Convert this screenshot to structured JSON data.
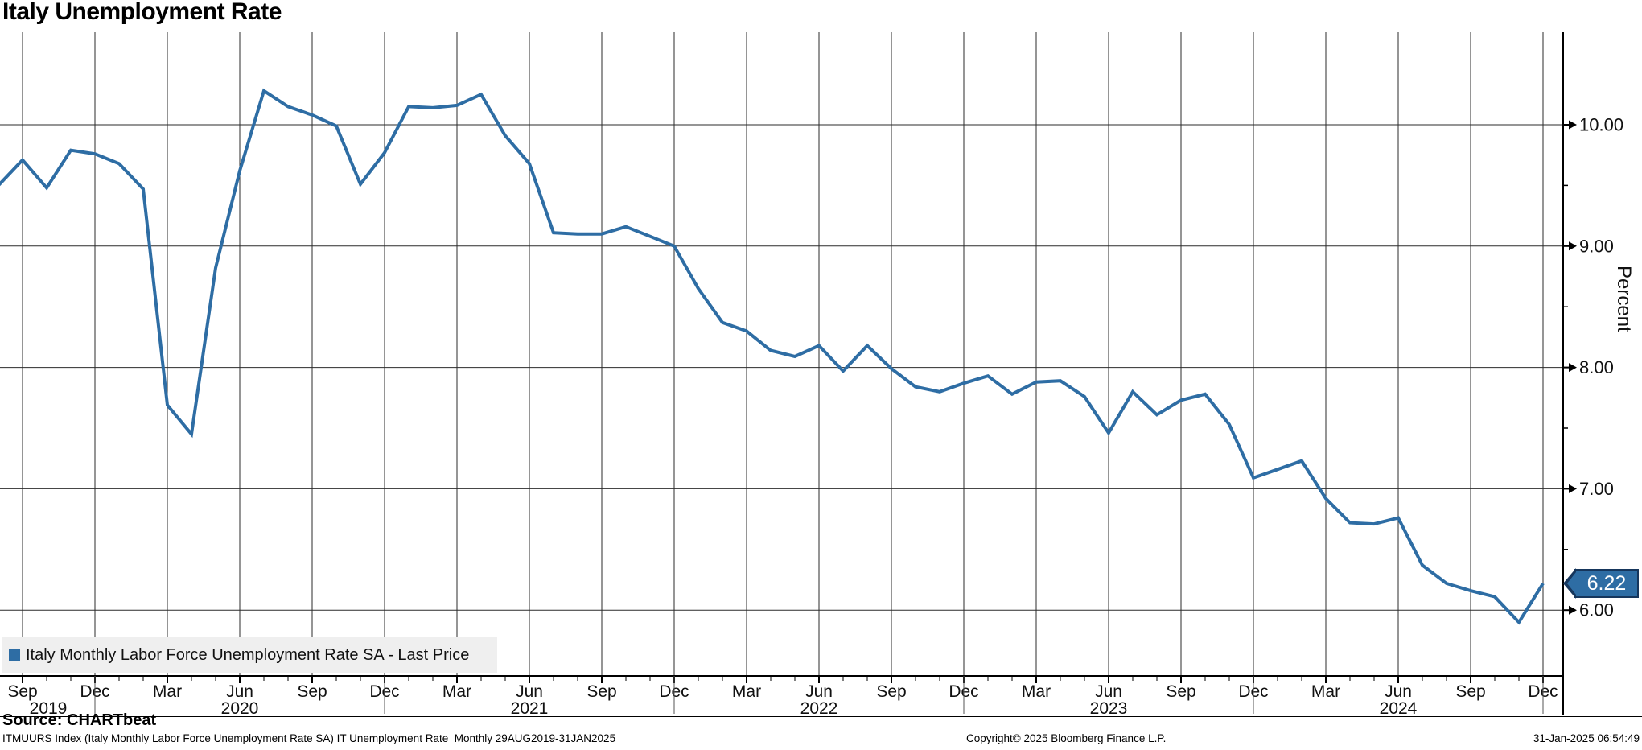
{
  "title": "Italy Unemployment Rate",
  "legend": {
    "label": "Italy Monthly Labor Force Unemployment Rate SA - Last Price",
    "marker_color": "#2e6da4"
  },
  "last_price_badge": {
    "value": "6.22",
    "fill": "#2e6da4",
    "border": "#16365c"
  },
  "y_axis": {
    "label": "Percent",
    "major_labels": [
      "10.00",
      "9.00",
      "8.00",
      "7.00",
      "6.00"
    ],
    "major_values": [
      10,
      9,
      8,
      7,
      6
    ],
    "minor_values": [
      9.5,
      8.5,
      7.5,
      6.5
    ]
  },
  "x_axis": {
    "quarter_labels": [
      "Sep",
      "Dec",
      "Mar",
      "Jun",
      "Sep",
      "Dec",
      "Mar",
      "Jun",
      "Sep",
      "Dec",
      "Mar",
      "Jun",
      "Sep",
      "Dec",
      "Mar",
      "Jun",
      "Sep",
      "Dec",
      "Mar",
      "Jun",
      "Sep",
      "Dec"
    ],
    "year_labels": [
      "2019",
      "2020",
      "2021",
      "2022",
      "2023",
      "2024"
    ]
  },
  "source": "Source: CHARTbeat",
  "footer": {
    "left": "ITMUURS Index (Italy Monthly Labor Force Unemployment Rate SA) IT Unemployment Rate  Monthly 29AUG2019-31JAN2025",
    "center": "Copyright© 2025 Bloomberg Finance L.P.",
    "right": "31-Jan-2025 06:54:49"
  },
  "colors": {
    "line": "#2e6da4",
    "grid": "#2b2b2b",
    "axis": "#000000",
    "legend_bg": "#efefef"
  },
  "chart_data": {
    "type": "line",
    "title": "Italy Unemployment Rate",
    "xlabel": "",
    "ylabel": "Percent",
    "ylim": [
      5.45,
      10.78
    ],
    "grid": true,
    "legend_position": "bottom-left",
    "last_price": 6.22,
    "series": [
      {
        "name": "Italy Monthly Labor Force Unemployment Rate SA - Last Price",
        "color": "#2e6da4",
        "x": [
          "2019-08",
          "2019-09",
          "2019-10",
          "2019-11",
          "2019-12",
          "2020-01",
          "2020-02",
          "2020-03",
          "2020-04",
          "2020-05",
          "2020-06",
          "2020-07",
          "2020-08",
          "2020-09",
          "2020-10",
          "2020-11",
          "2020-12",
          "2021-01",
          "2021-02",
          "2021-03",
          "2021-04",
          "2021-05",
          "2021-06",
          "2021-07",
          "2021-08",
          "2021-09",
          "2021-10",
          "2021-11",
          "2021-12",
          "2022-01",
          "2022-02",
          "2022-03",
          "2022-04",
          "2022-05",
          "2022-06",
          "2022-07",
          "2022-08",
          "2022-09",
          "2022-10",
          "2022-11",
          "2022-12",
          "2023-01",
          "2023-02",
          "2023-03",
          "2023-04",
          "2023-05",
          "2023-06",
          "2023-07",
          "2023-08",
          "2023-09",
          "2023-10",
          "2023-11",
          "2023-12",
          "2024-01",
          "2024-02",
          "2024-03",
          "2024-04",
          "2024-05",
          "2024-06",
          "2024-07",
          "2024-08",
          "2024-09",
          "2024-10",
          "2024-11",
          "2024-12"
        ],
        "values": [
          9.5,
          9.71,
          9.48,
          9.79,
          9.76,
          9.68,
          9.47,
          7.69,
          7.45,
          8.82,
          9.62,
          10.28,
          10.15,
          10.08,
          9.99,
          9.51,
          9.77,
          10.15,
          10.14,
          10.16,
          10.25,
          9.91,
          9.68,
          9.11,
          9.1,
          9.1,
          9.16,
          9.08,
          9.0,
          8.65,
          8.37,
          8.3,
          8.14,
          8.09,
          8.18,
          7.97,
          8.18,
          7.99,
          7.84,
          7.8,
          7.87,
          7.93,
          7.78,
          7.88,
          7.89,
          7.76,
          7.46,
          7.8,
          7.61,
          7.73,
          7.78,
          7.53,
          7.09,
          7.16,
          7.23,
          6.92,
          6.72,
          6.71,
          6.76,
          6.37,
          6.22,
          6.16,
          6.11,
          5.9,
          6.22
        ]
      }
    ]
  }
}
